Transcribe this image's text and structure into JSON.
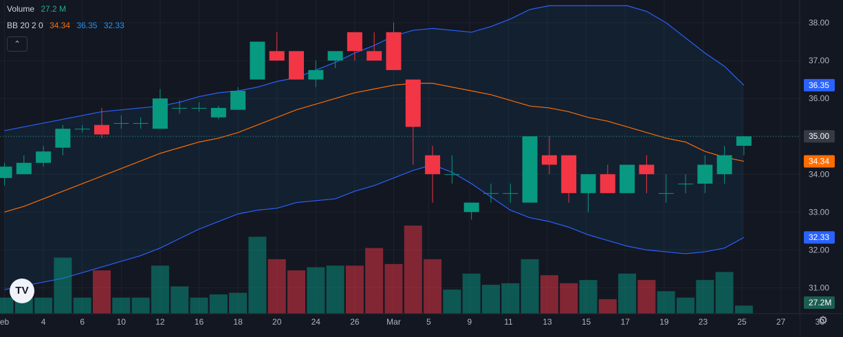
{
  "legend": {
    "volume_label": "Volume",
    "volume_value": "27.2 M",
    "bb_label": "BB 20 2 0",
    "bb_values": [
      "34.34",
      "36.35",
      "32.33"
    ]
  },
  "collapse_icon": "chevron-up-icon",
  "logo_text": "TV",
  "settings_icon": "gear-icon",
  "colors": {
    "up": "#089981",
    "down": "#f23645",
    "upper_band": "#2962ff",
    "middle_band": "#ff6d00",
    "lower_band": "#2962ff",
    "background": "#131722"
  },
  "chart_data": {
    "type": "candlestick",
    "x_ticks": [
      "eb",
      "4",
      "6",
      "10",
      "12",
      "16",
      "18",
      "20",
      "24",
      "26",
      "Mar",
      "5",
      "9",
      "11",
      "13",
      "15",
      "17",
      "19",
      "23",
      "25",
      "27",
      "30"
    ],
    "y_ticks": [
      "38.00",
      "37.00",
      "36.00",
      "35.00",
      "34.00",
      "33.00",
      "32.00",
      "31.00"
    ],
    "ylim": [
      30.5,
      38.6
    ],
    "price_labels": [
      {
        "text": "36.35",
        "value": 36.35,
        "color": "#2962ff"
      },
      {
        "text": "35.00",
        "value": 35.0,
        "color": "#363a45"
      },
      {
        "text": "34.34",
        "value": 34.34,
        "color": "#ff6d00"
      },
      {
        "text": "32.33",
        "value": 32.33,
        "color": "#2962ff"
      }
    ],
    "last_price_line": 35.0,
    "volume_label": "27.2M",
    "candles": [
      {
        "o": 33.9,
        "h": 34.3,
        "l": 33.7,
        "c": 34.2
      },
      {
        "o": 34.0,
        "h": 34.5,
        "l": 34.0,
        "c": 34.3
      },
      {
        "o": 34.3,
        "h": 34.75,
        "l": 34.2,
        "c": 34.6
      },
      {
        "o": 34.7,
        "h": 35.3,
        "l": 34.5,
        "c": 35.2
      },
      {
        "o": 35.2,
        "h": 35.3,
        "l": 35.1,
        "c": 35.2
      },
      {
        "o": 35.3,
        "h": 35.75,
        "l": 34.95,
        "c": 35.05
      },
      {
        "o": 35.35,
        "h": 35.55,
        "l": 35.2,
        "c": 35.35
      },
      {
        "o": 35.35,
        "h": 35.5,
        "l": 35.2,
        "c": 35.35
      },
      {
        "o": 35.2,
        "h": 36.25,
        "l": 35.2,
        "c": 36.0
      },
      {
        "o": 35.75,
        "h": 35.95,
        "l": 35.6,
        "c": 35.75
      },
      {
        "o": 35.75,
        "h": 35.9,
        "l": 35.65,
        "c": 35.75
      },
      {
        "o": 35.5,
        "h": 35.8,
        "l": 35.45,
        "c": 35.75
      },
      {
        "o": 35.7,
        "h": 36.3,
        "l": 35.7,
        "c": 36.2
      },
      {
        "o": 36.5,
        "h": 37.5,
        "l": 36.5,
        "c": 37.5
      },
      {
        "o": 37.25,
        "h": 37.75,
        "l": 37.0,
        "c": 37.0
      },
      {
        "o": 37.25,
        "h": 37.25,
        "l": 36.5,
        "c": 36.5
      },
      {
        "o": 36.5,
        "h": 37.0,
        "l": 36.3,
        "c": 36.75
      },
      {
        "o": 37.0,
        "h": 37.25,
        "l": 36.8,
        "c": 37.25
      },
      {
        "o": 37.75,
        "h": 37.75,
        "l": 37.0,
        "c": 37.25
      },
      {
        "o": 37.25,
        "h": 37.75,
        "l": 37.0,
        "c": 37.0
      },
      {
        "o": 37.75,
        "h": 38.0,
        "l": 36.75,
        "c": 36.75
      },
      {
        "o": 36.5,
        "h": 36.5,
        "l": 34.25,
        "c": 35.25
      },
      {
        "o": 34.5,
        "h": 34.75,
        "l": 33.25,
        "c": 34.0
      },
      {
        "o": 34.0,
        "h": 34.5,
        "l": 33.75,
        "c": 34.0
      },
      {
        "o": 33.0,
        "h": 33.25,
        "l": 32.8,
        "c": 33.25
      },
      {
        "o": 33.5,
        "h": 33.75,
        "l": 33.25,
        "c": 33.5
      },
      {
        "o": 33.5,
        "h": 33.75,
        "l": 33.25,
        "c": 33.5
      },
      {
        "o": 33.25,
        "h": 35.0,
        "l": 33.25,
        "c": 35.0
      },
      {
        "o": 34.5,
        "h": 35.0,
        "l": 34.0,
        "c": 34.25
      },
      {
        "o": 34.5,
        "h": 34.5,
        "l": 33.25,
        "c": 33.5
      },
      {
        "o": 33.5,
        "h": 34.0,
        "l": 33.0,
        "c": 34.0
      },
      {
        "o": 34.0,
        "h": 34.25,
        "l": 33.5,
        "c": 33.5
      },
      {
        "o": 33.5,
        "h": 34.25,
        "l": 33.5,
        "c": 34.25
      },
      {
        "o": 34.25,
        "h": 34.5,
        "l": 33.5,
        "c": 34.0
      },
      {
        "o": 33.5,
        "h": 34.0,
        "l": 33.25,
        "c": 33.5
      },
      {
        "o": 33.75,
        "h": 34.0,
        "l": 33.5,
        "c": 33.75
      },
      {
        "o": 33.75,
        "h": 34.5,
        "l": 33.5,
        "c": 34.25
      },
      {
        "o": 34.0,
        "h": 34.75,
        "l": 33.75,
        "c": 34.5
      },
      {
        "o": 34.75,
        "h": 35.0,
        "l": 34.5,
        "c": 35.0
      }
    ],
    "volume_relative": [
      0.1,
      0.1,
      0.1,
      0.35,
      0.1,
      0.27,
      0.1,
      0.1,
      0.3,
      0.17,
      0.1,
      0.12,
      0.13,
      0.48,
      0.34,
      0.27,
      0.29,
      0.3,
      0.3,
      0.41,
      0.31,
      0.55,
      0.34,
      0.15,
      0.25,
      0.18,
      0.19,
      0.34,
      0.24,
      0.19,
      0.21,
      0.09,
      0.25,
      0.21,
      0.14,
      0.1,
      0.21,
      0.26,
      0.05
    ],
    "bb_upper": [
      35.15,
      35.25,
      35.35,
      35.45,
      35.55,
      35.65,
      35.7,
      35.75,
      35.8,
      35.9,
      36.05,
      36.15,
      36.2,
      36.3,
      36.45,
      36.55,
      36.75,
      36.95,
      37.2,
      37.4,
      37.65,
      37.8,
      37.85,
      37.8,
      37.75,
      37.9,
      38.1,
      38.35,
      38.45,
      38.45,
      38.45,
      38.45,
      38.45,
      38.3,
      38.0,
      37.6,
      37.2,
      36.85,
      36.35
    ],
    "bb_middle": [
      33.0,
      33.15,
      33.35,
      33.55,
      33.75,
      33.95,
      34.15,
      34.35,
      34.55,
      34.7,
      34.85,
      34.95,
      35.1,
      35.3,
      35.5,
      35.7,
      35.85,
      36.0,
      36.15,
      36.25,
      36.35,
      36.4,
      36.4,
      36.3,
      36.2,
      36.1,
      35.95,
      35.8,
      35.75,
      35.65,
      35.5,
      35.4,
      35.25,
      35.1,
      34.95,
      34.85,
      34.6,
      34.45,
      34.34
    ],
    "bb_lower": [
      30.95,
      31.05,
      31.15,
      31.25,
      31.4,
      31.55,
      31.7,
      31.85,
      32.05,
      32.3,
      32.55,
      32.75,
      32.95,
      33.05,
      33.1,
      33.25,
      33.3,
      33.35,
      33.55,
      33.7,
      33.9,
      34.1,
      34.25,
      34.05,
      33.75,
      33.4,
      33.05,
      32.85,
      32.75,
      32.6,
      32.4,
      32.25,
      32.1,
      32.0,
      31.95,
      31.9,
      31.95,
      32.05,
      32.33
    ]
  }
}
